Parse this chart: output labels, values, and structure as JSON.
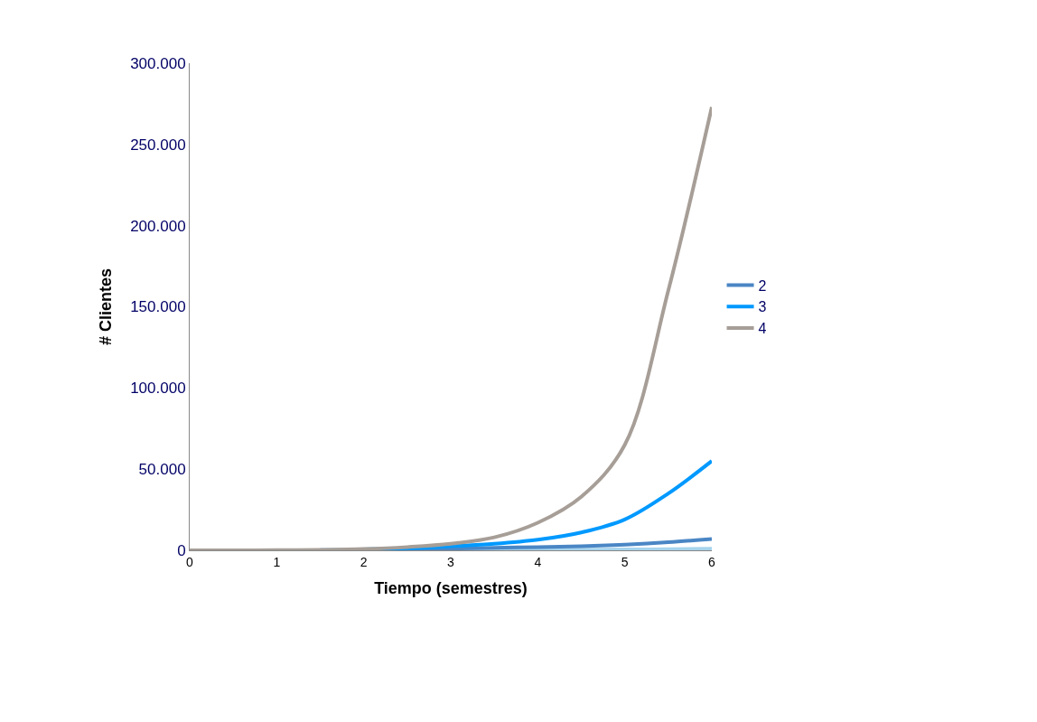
{
  "chart_data": {
    "type": "line",
    "xlabel": "Tiempo (semestres)",
    "ylabel": "# Clientes",
    "x": [
      0,
      0.5,
      1,
      1.5,
      2,
      2.5,
      3,
      3.5,
      4,
      4.5,
      5,
      5.5,
      6
    ],
    "series": [
      {
        "color": "#a6d3ec",
        "values": [
          null,
          null,
          null,
          null,
          null,
          null,
          100,
          200,
          300,
          400,
          500,
          700,
          1000
        ]
      },
      {
        "name": "2",
        "color": "#4a86c5",
        "values": [
          null,
          null,
          null,
          100,
          300,
          600,
          1000,
          1500,
          2000,
          2500,
          3500,
          5000,
          7000
        ]
      },
      {
        "name": "3",
        "color": "#0099ff",
        "values": [
          null,
          null,
          null,
          null,
          600,
          1200,
          2500,
          4000,
          6500,
          11000,
          19000,
          35000,
          55000
        ]
      },
      {
        "name": "4",
        "color": "#a69e97",
        "values": [
          0,
          0,
          100,
          300,
          800,
          2000,
          4000,
          8000,
          17000,
          33000,
          65000,
          160000,
          273000
        ]
      }
    ],
    "xlim": [
      0,
      6
    ],
    "xticks": [
      0,
      1,
      2,
      3,
      4,
      5,
      6
    ],
    "ylim": [
      0,
      300000
    ],
    "yticks": [
      {
        "value": 0,
        "label": "0"
      },
      {
        "value": 50000,
        "label": "50.000"
      },
      {
        "value": 100000,
        "label": "100.000"
      },
      {
        "value": 150000,
        "label": "150.000"
      },
      {
        "value": 200000,
        "label": "200.000"
      },
      {
        "value": 250000,
        "label": "250.000"
      },
      {
        "value": 300000,
        "label": "300.000"
      }
    ],
    "legend": "right",
    "marker": "none",
    "line_style": "solid"
  }
}
